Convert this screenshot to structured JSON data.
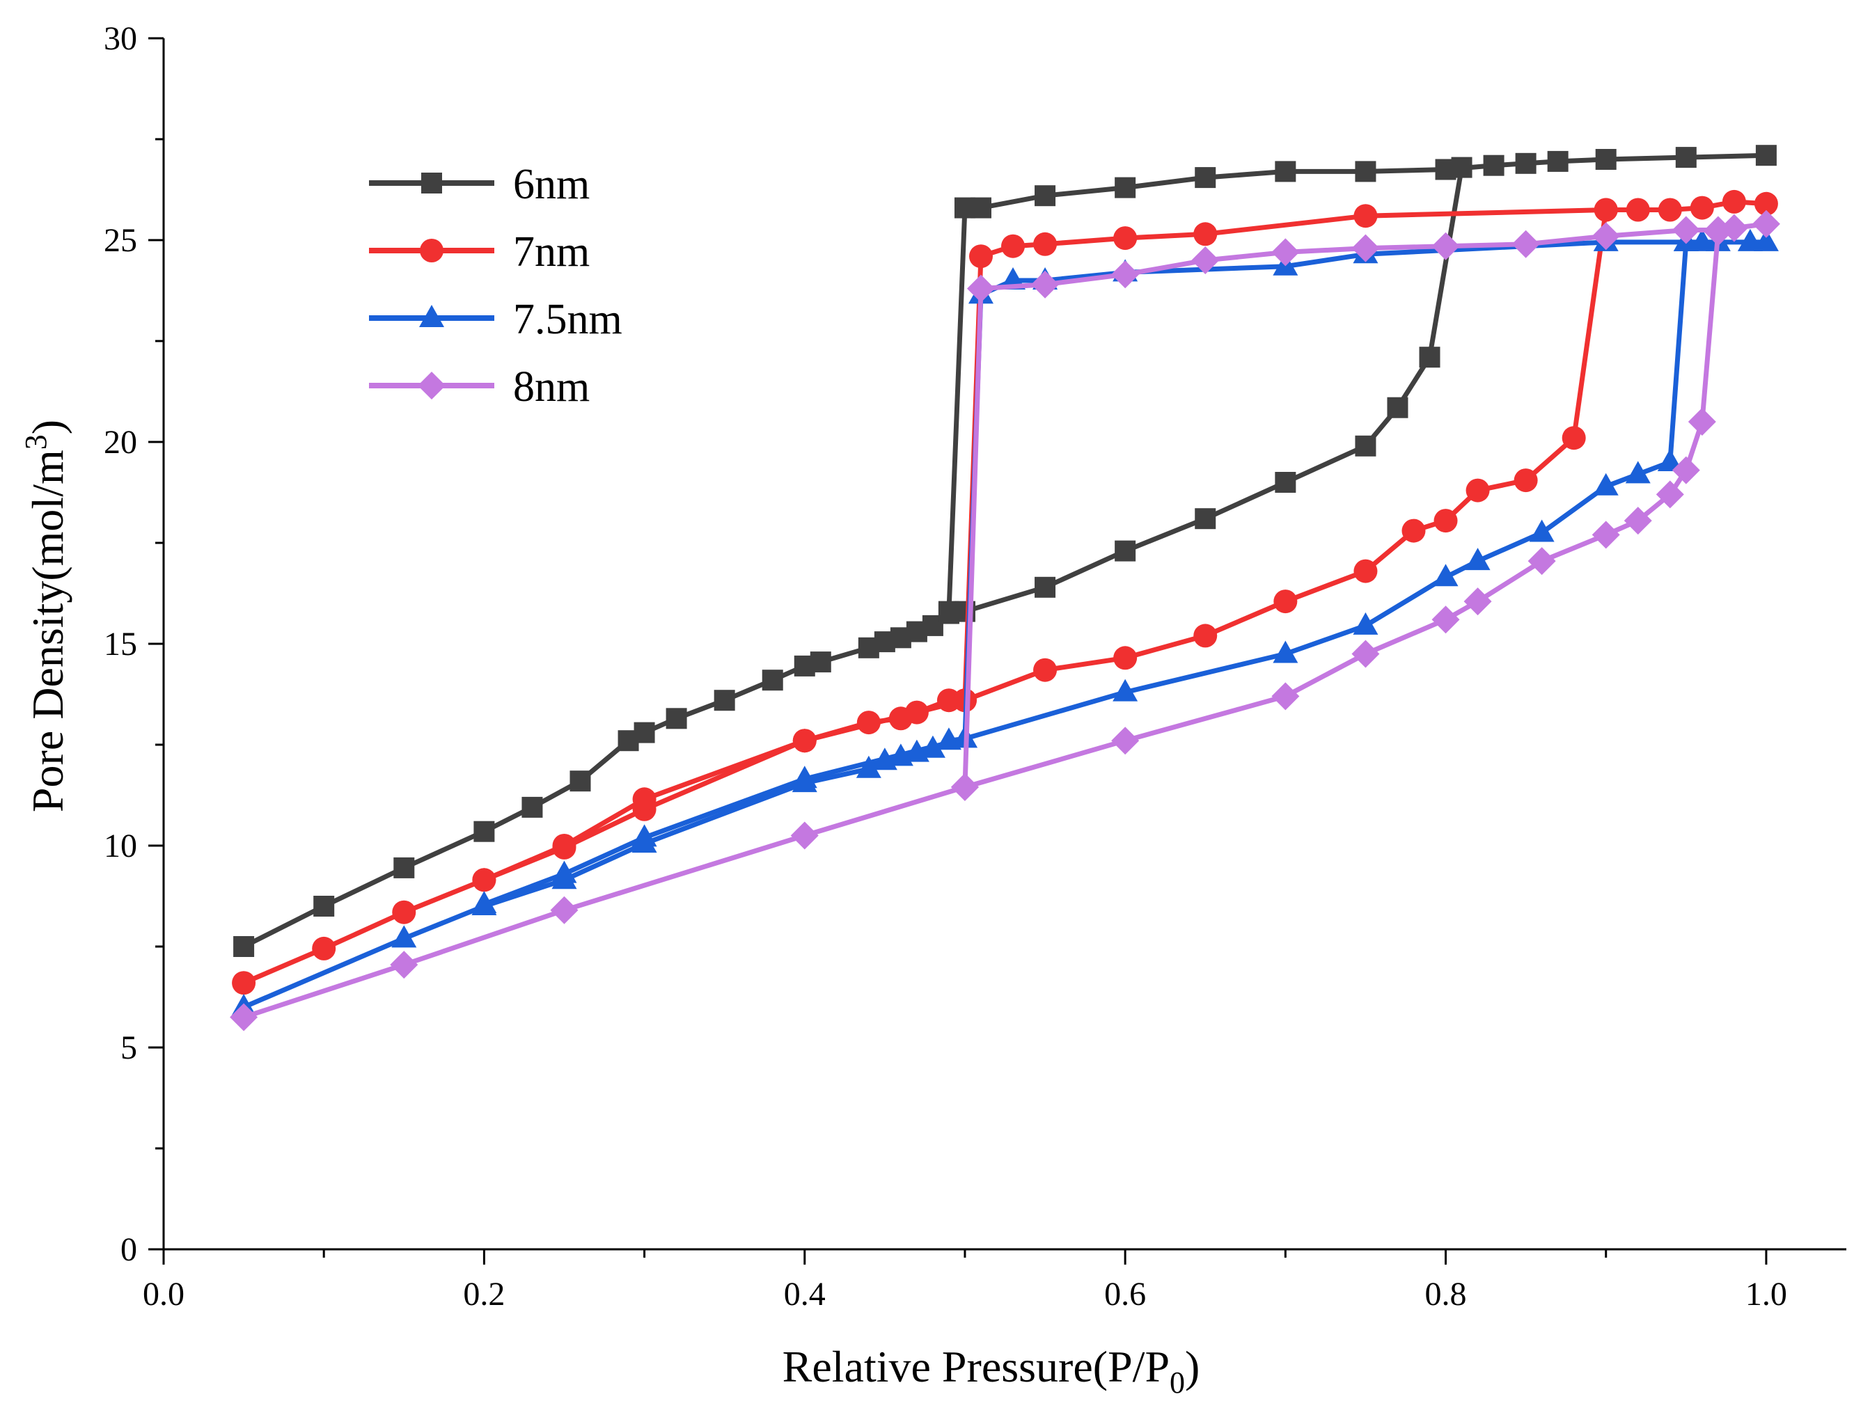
{
  "chart_data": {
    "type": "line",
    "title": "",
    "xlabel": "Relative Pressure(P/P",
    "xlabel_sub": "0",
    "xlabel_end": ")",
    "ylabel": "Pore Density(mol/m",
    "ylabel_sup": "3",
    "ylabel_end": ")",
    "xlim": [
      0.0,
      1.05
    ],
    "ylim": [
      0,
      30
    ],
    "x_ticks": [
      {
        "value": 0.0,
        "label": "0.0"
      },
      {
        "value": 0.2,
        "label": "0.2"
      },
      {
        "value": 0.4,
        "label": "0.4"
      },
      {
        "value": 0.6,
        "label": "0.6"
      },
      {
        "value": 0.8,
        "label": "0.8"
      },
      {
        "value": 1.0,
        "label": "1.0"
      }
    ],
    "y_ticks": [
      {
        "value": 0,
        "label": "0"
      },
      {
        "value": 5,
        "label": "5"
      },
      {
        "value": 10,
        "label": "10"
      },
      {
        "value": 15,
        "label": "15"
      },
      {
        "value": 20,
        "label": "20"
      },
      {
        "value": 25,
        "label": "25"
      },
      {
        "value": 30,
        "label": "30"
      }
    ],
    "x_minor_step": 0.1,
    "y_minor_step": 2.5,
    "legend_position": "top-left",
    "series": [
      {
        "name": "6nm",
        "color": "#404040",
        "marker": "square",
        "adsorption": [
          [
            0.05,
            7.5
          ],
          [
            0.1,
            8.5
          ],
          [
            0.15,
            9.45
          ],
          [
            0.2,
            10.35
          ],
          [
            0.23,
            10.95
          ],
          [
            0.26,
            11.6
          ],
          [
            0.29,
            12.6
          ],
          [
            0.3,
            12.8
          ],
          [
            0.32,
            13.15
          ],
          [
            0.35,
            13.6
          ],
          [
            0.38,
            14.1
          ],
          [
            0.4,
            14.45
          ],
          [
            0.41,
            14.55
          ],
          [
            0.44,
            14.9
          ],
          [
            0.45,
            15.05
          ],
          [
            0.46,
            15.15
          ],
          [
            0.47,
            15.3
          ],
          [
            0.48,
            15.45
          ],
          [
            0.49,
            15.75
          ],
          [
            0.5,
            15.8
          ],
          [
            0.55,
            16.4
          ],
          [
            0.6,
            17.3
          ],
          [
            0.65,
            18.1
          ],
          [
            0.7,
            19.0
          ],
          [
            0.75,
            19.9
          ],
          [
            0.77,
            20.85
          ],
          [
            0.79,
            22.1
          ],
          [
            0.81,
            26.8
          ]
        ],
        "desorption": [
          [
            1.0,
            27.1
          ],
          [
            0.95,
            27.05
          ],
          [
            0.9,
            27.0
          ],
          [
            0.87,
            26.95
          ],
          [
            0.85,
            26.9
          ],
          [
            0.83,
            26.85
          ],
          [
            0.8,
            26.75
          ],
          [
            0.75,
            26.7
          ],
          [
            0.7,
            26.7
          ],
          [
            0.65,
            26.55
          ],
          [
            0.6,
            26.3
          ],
          [
            0.55,
            26.1
          ],
          [
            0.51,
            25.8
          ],
          [
            0.5,
            25.8
          ],
          [
            0.49,
            15.8
          ]
        ]
      },
      {
        "name": "7nm",
        "color": "#f03030",
        "marker": "circle",
        "adsorption": [
          [
            0.05,
            6.6
          ],
          [
            0.1,
            7.45
          ],
          [
            0.15,
            8.35
          ],
          [
            0.2,
            9.15
          ],
          [
            0.25,
            9.95
          ],
          [
            0.3,
            10.9
          ],
          [
            0.4,
            12.6
          ],
          [
            0.44,
            13.05
          ],
          [
            0.46,
            13.15
          ],
          [
            0.47,
            13.3
          ],
          [
            0.49,
            13.6
          ],
          [
            0.5,
            13.6
          ],
          [
            0.55,
            14.35
          ],
          [
            0.6,
            14.65
          ],
          [
            0.65,
            15.2
          ],
          [
            0.7,
            16.05
          ],
          [
            0.75,
            16.8
          ],
          [
            0.78,
            17.8
          ],
          [
            0.8,
            18.05
          ],
          [
            0.82,
            18.8
          ],
          [
            0.85,
            19.05
          ],
          [
            0.88,
            20.1
          ],
          [
            0.9,
            25.75
          ]
        ],
        "desorption": [
          [
            1.0,
            25.9
          ],
          [
            0.98,
            25.95
          ],
          [
            0.96,
            25.8
          ],
          [
            0.94,
            25.75
          ],
          [
            0.92,
            25.75
          ],
          [
            0.9,
            25.75
          ],
          [
            0.75,
            25.6
          ],
          [
            0.65,
            25.15
          ],
          [
            0.6,
            25.05
          ],
          [
            0.55,
            24.9
          ],
          [
            0.53,
            24.85
          ],
          [
            0.51,
            24.6
          ],
          [
            0.5,
            13.6
          ],
          [
            0.4,
            12.6
          ],
          [
            0.3,
            11.15
          ],
          [
            0.25,
            10.0
          ],
          [
            0.2,
            9.15
          ]
        ]
      },
      {
        "name": "7.5nm",
        "color": "#1a60d8",
        "marker": "triangle",
        "adsorption": [
          [
            0.05,
            6.0
          ],
          [
            0.15,
            7.7
          ],
          [
            0.2,
            8.5
          ],
          [
            0.25,
            9.15
          ],
          [
            0.3,
            10.05
          ],
          [
            0.4,
            11.55
          ],
          [
            0.44,
            11.9
          ],
          [
            0.45,
            12.1
          ],
          [
            0.46,
            12.2
          ],
          [
            0.47,
            12.3
          ],
          [
            0.48,
            12.4
          ],
          [
            0.49,
            12.6
          ],
          [
            0.5,
            12.65
          ],
          [
            0.6,
            13.8
          ],
          [
            0.7,
            14.75
          ],
          [
            0.75,
            15.45
          ],
          [
            0.8,
            16.65
          ],
          [
            0.82,
            17.05
          ],
          [
            0.86,
            17.75
          ],
          [
            0.9,
            18.9
          ],
          [
            0.92,
            19.2
          ],
          [
            0.94,
            19.5
          ],
          [
            0.95,
            24.95
          ]
        ],
        "desorption": [
          [
            1.0,
            24.95
          ],
          [
            0.99,
            24.95
          ],
          [
            0.97,
            24.95
          ],
          [
            0.96,
            24.95
          ],
          [
            0.95,
            24.95
          ],
          [
            0.9,
            24.95
          ],
          [
            0.75,
            24.65
          ],
          [
            0.7,
            24.35
          ],
          [
            0.6,
            24.2
          ],
          [
            0.55,
            24.0
          ],
          [
            0.53,
            24.0
          ],
          [
            0.51,
            23.65
          ],
          [
            0.5,
            12.65
          ],
          [
            0.4,
            11.65
          ],
          [
            0.3,
            10.2
          ],
          [
            0.25,
            9.3
          ],
          [
            0.2,
            8.55
          ]
        ]
      },
      {
        "name": "8nm",
        "color": "#c478e0",
        "marker": "diamond",
        "adsorption": [
          [
            0.05,
            5.75
          ],
          [
            0.15,
            7.05
          ],
          [
            0.25,
            8.4
          ],
          [
            0.4,
            10.25
          ],
          [
            0.5,
            11.45
          ],
          [
            0.6,
            12.6
          ],
          [
            0.7,
            13.7
          ],
          [
            0.75,
            14.75
          ],
          [
            0.8,
            15.6
          ],
          [
            0.82,
            16.05
          ],
          [
            0.86,
            17.05
          ],
          [
            0.9,
            17.7
          ],
          [
            0.92,
            18.05
          ],
          [
            0.94,
            18.7
          ],
          [
            0.95,
            19.3
          ],
          [
            0.96,
            20.5
          ],
          [
            0.97,
            25.2
          ]
        ],
        "desorption": [
          [
            1.0,
            25.4
          ],
          [
            0.98,
            25.3
          ],
          [
            0.97,
            25.25
          ],
          [
            0.95,
            25.25
          ],
          [
            0.9,
            25.1
          ],
          [
            0.85,
            24.9
          ],
          [
            0.8,
            24.85
          ],
          [
            0.75,
            24.8
          ],
          [
            0.7,
            24.7
          ],
          [
            0.65,
            24.5
          ],
          [
            0.6,
            24.15
          ],
          [
            0.55,
            23.9
          ],
          [
            0.51,
            23.8
          ],
          [
            0.5,
            11.45
          ]
        ]
      }
    ]
  }
}
